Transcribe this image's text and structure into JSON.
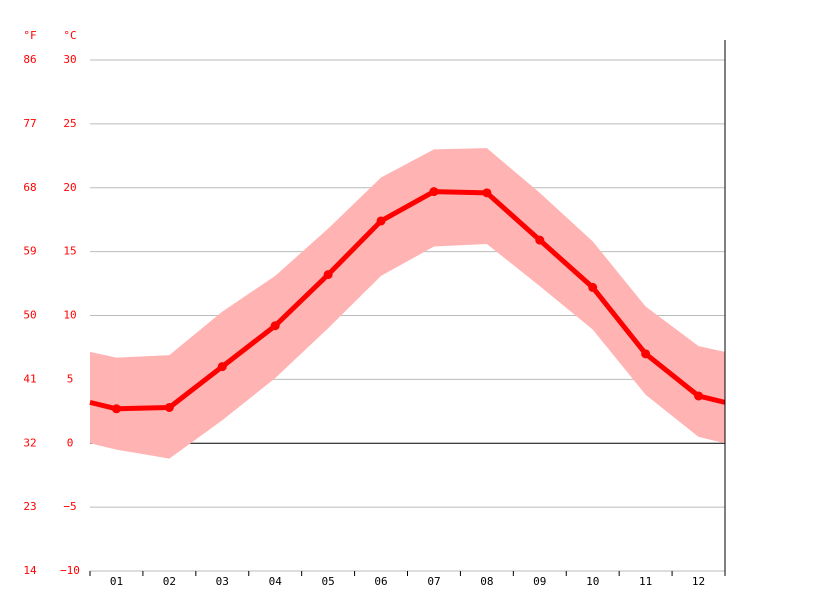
{
  "chart_data": {
    "type": "line",
    "y_label": "°C",
    "y2_label": "°F",
    "categories": [
      "01",
      "02",
      "03",
      "04",
      "05",
      "06",
      "07",
      "08",
      "09",
      "10",
      "11",
      "12"
    ],
    "series": [
      {
        "color": "#ff0000",
        "values": [
          2.7,
          2.8,
          6.0,
          9.2,
          13.2,
          17.4,
          19.7,
          19.6,
          15.9,
          12.2,
          7.0,
          3.7
        ]
      }
    ],
    "band": {
      "color": "#ffb3b3",
      "high": [
        6.7,
        6.9,
        10.3,
        13.1,
        16.8,
        20.8,
        23.0,
        23.1,
        19.6,
        15.8,
        10.7,
        7.6
      ],
      "low": [
        -0.5,
        -1.2,
        1.8,
        5.1,
        9.0,
        13.1,
        15.4,
        15.6,
        12.3,
        8.9,
        3.8,
        0.5
      ]
    },
    "ylim": [
      -10,
      30
    ],
    "yticks": [
      {
        "value": -10,
        "label": "−10"
      },
      {
        "value": -5,
        "label": "−5"
      },
      0,
      5,
      10,
      15,
      20,
      25,
      30
    ],
    "y2lim": [
      14,
      86
    ],
    "y2ticks": [
      14,
      23,
      32,
      41,
      50,
      59,
      68,
      77,
      86
    ],
    "axis_color": "#ff0000",
    "grid": true
  }
}
